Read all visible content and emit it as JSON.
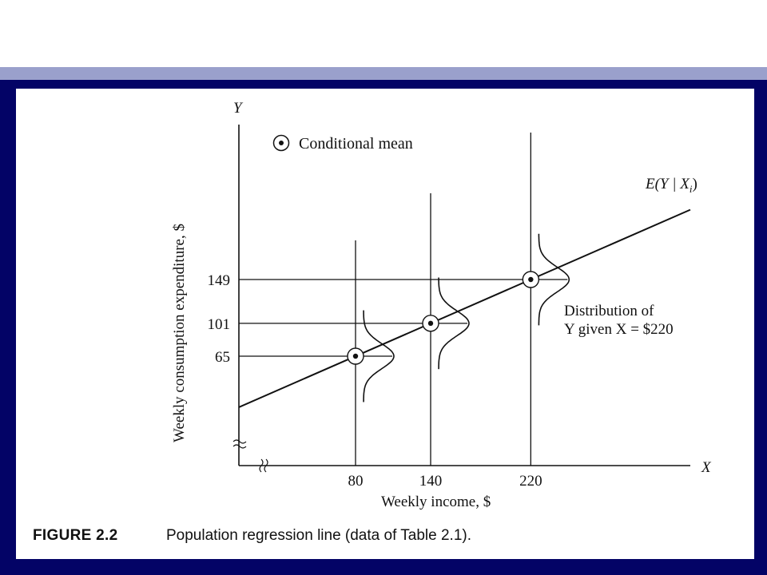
{
  "colors": {
    "accent_bar": "#9aa0cc",
    "frame": "#030366",
    "panel": "#ffffff",
    "ink": "#111111"
  },
  "chart_data": {
    "type": "line",
    "xlabel": "Weekly income, $",
    "ylabel": "Weekly consumption expenditure, $",
    "x_axis_letter": "X",
    "y_axis_letter": "Y",
    "x_ticks": [
      "80",
      "140",
      "220"
    ],
    "y_ticks": [
      "65",
      "101",
      "149"
    ],
    "points": [
      {
        "x": 80,
        "y": 65
      },
      {
        "x": 140,
        "y": 101
      },
      {
        "x": 220,
        "y": 149
      }
    ],
    "regression_label": "E(Y | X",
    "regression_subscript": "i",
    "regression_label_close": ")",
    "legend": {
      "label": "Conditional mean",
      "placement": "top-left"
    },
    "annotation_line1": "Distribution of",
    "annotation_line2": "Y given X  = $220",
    "axis_breaks": true,
    "grid": false
  },
  "caption": {
    "label": "FIGURE 2.2",
    "text": "Population regression line (data of Table 2.1)."
  }
}
